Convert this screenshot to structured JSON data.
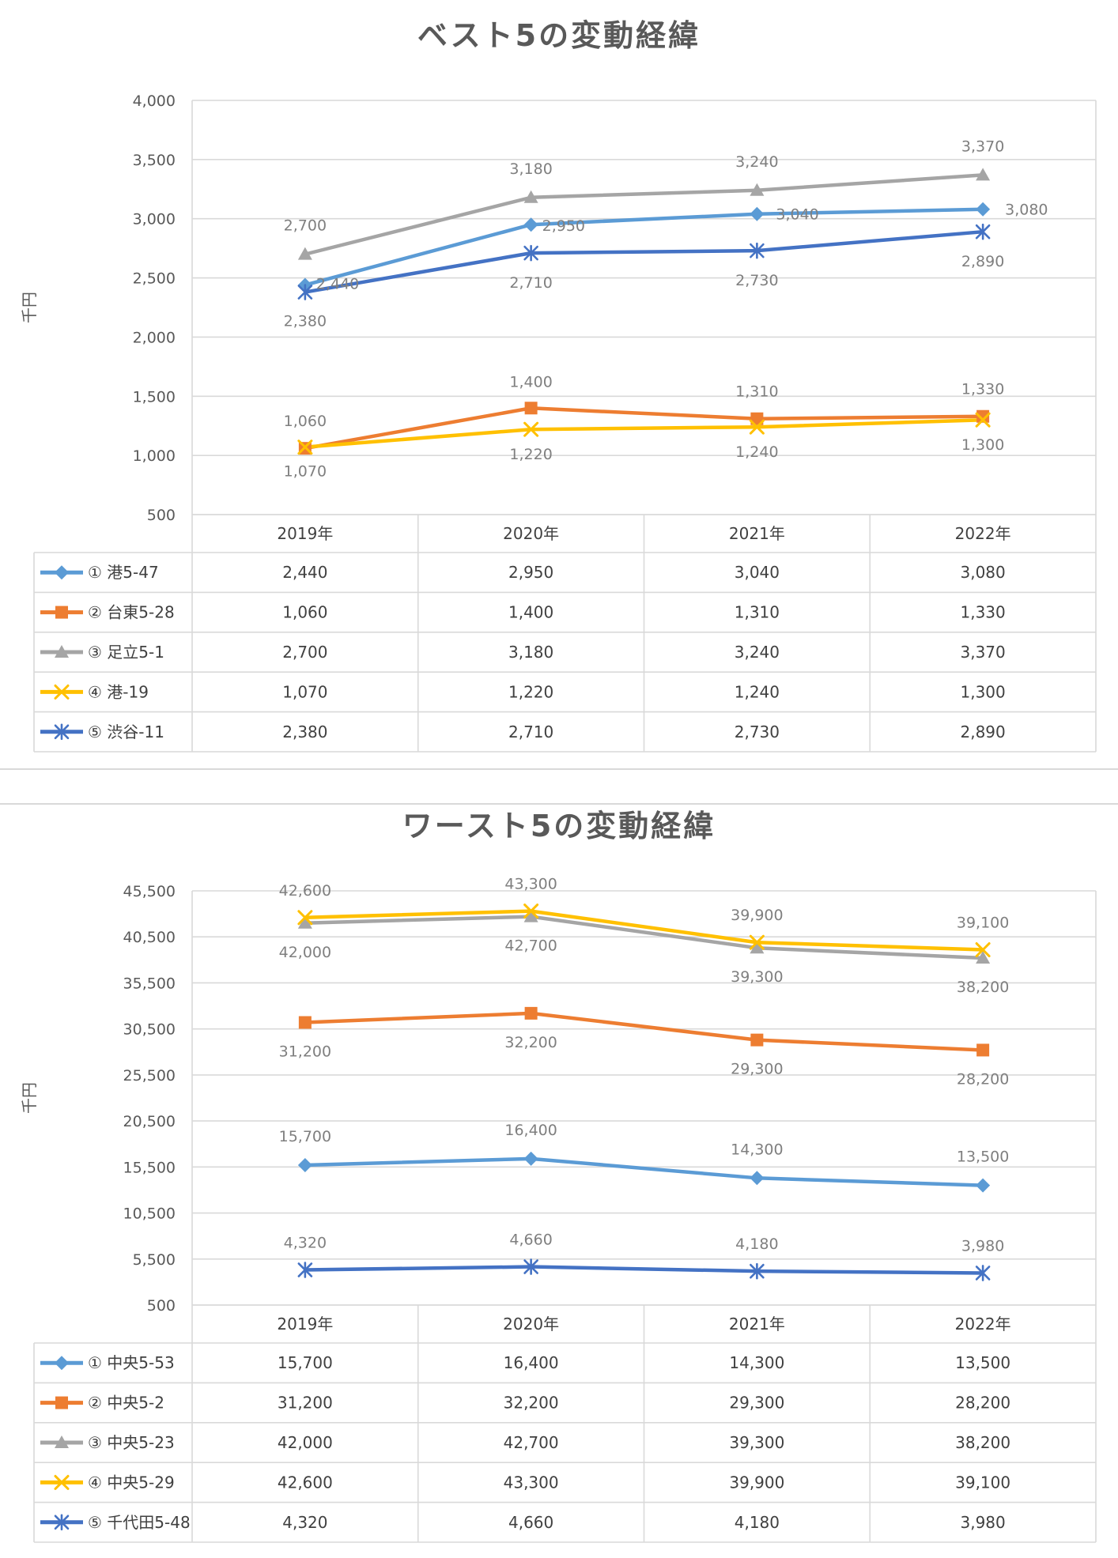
{
  "chart_data": [
    {
      "type": "line",
      "title": "ベスト5の変動経緯",
      "ylabel": "千円",
      "categories": [
        "2019年",
        "2020年",
        "2021年",
        "2022年"
      ],
      "ylim": [
        500,
        4000
      ],
      "yticks": [
        "4,000",
        "3,500",
        "3,000",
        "2,500",
        "2,000",
        "1,500",
        "1,000",
        "500"
      ],
      "ytick_values": [
        4000,
        3500,
        3000,
        2500,
        2000,
        1500,
        1000,
        500
      ],
      "grid": true,
      "legend": "data-table",
      "series": [
        {
          "name": "① 港5-47",
          "values": [
            2440,
            2950,
            3040,
            3080
          ],
          "labels": [
            "2,440",
            "2,950",
            "3,040",
            "3,080"
          ],
          "color": "#5B9BD5",
          "marker": "diamond"
        },
        {
          "name": "② 台東5-28",
          "values": [
            1060,
            1400,
            1310,
            1330
          ],
          "labels": [
            "1,060",
            "1,400",
            "1,310",
            "1,330"
          ],
          "color": "#ED7D31",
          "marker": "square"
        },
        {
          "name": "③ 足立5-1",
          "values": [
            2700,
            3180,
            3240,
            3370
          ],
          "labels": [
            "2,700",
            "3,180",
            "3,240",
            "3,370"
          ],
          "color": "#A5A5A5",
          "marker": "triangle"
        },
        {
          "name": "④ 港-19",
          "values": [
            1070,
            1220,
            1240,
            1300
          ],
          "labels": [
            "1,070",
            "1,220",
            "1,240",
            "1,300"
          ],
          "color": "#FFC000",
          "marker": "x"
        },
        {
          "name": "⑤ 渋谷-11",
          "values": [
            2380,
            2710,
            2730,
            2890
          ],
          "labels": [
            "2,380",
            "2,710",
            "2,730",
            "2,890"
          ],
          "color": "#4472C4",
          "marker": "star"
        }
      ]
    },
    {
      "type": "line",
      "title": "ワースト5の変動経緯",
      "ylabel": "千円",
      "categories": [
        "2019年",
        "2020年",
        "2021年",
        "2022年"
      ],
      "ylim": [
        500,
        45500
      ],
      "yticks": [
        "45,500",
        "40,500",
        "35,500",
        "30,500",
        "25,500",
        "20,500",
        "15,500",
        "10,500",
        "5,500",
        "500"
      ],
      "ytick_values": [
        45500,
        40500,
        35500,
        30500,
        25500,
        20500,
        15500,
        10500,
        5500,
        500
      ],
      "grid": true,
      "legend": "data-table",
      "series": [
        {
          "name": "① 中央5-53",
          "values": [
            15700,
            16400,
            14300,
            13500
          ],
          "labels": [
            "15,700",
            "16,400",
            "14,300",
            "13,500"
          ],
          "color": "#5B9BD5",
          "marker": "diamond"
        },
        {
          "name": "② 中央5-2",
          "values": [
            31200,
            32200,
            29300,
            28200
          ],
          "labels": [
            "31,200",
            "32,200",
            "29,300",
            "28,200"
          ],
          "color": "#ED7D31",
          "marker": "square"
        },
        {
          "name": "③ 中央5-23",
          "values": [
            42000,
            42700,
            39300,
            38200
          ],
          "labels": [
            "42,000",
            "42,700",
            "39,300",
            "38,200"
          ],
          "color": "#A5A5A5",
          "marker": "triangle"
        },
        {
          "name": "④ 中央5-29",
          "values": [
            42600,
            43300,
            39900,
            39100
          ],
          "labels": [
            "42,600",
            "43,300",
            "39,900",
            "39,100"
          ],
          "color": "#FFC000",
          "marker": "x"
        },
        {
          "name": "⑤ 千代田5-48",
          "values": [
            4320,
            4660,
            4180,
            3980
          ],
          "labels": [
            "4,320",
            "4,660",
            "4,180",
            "3,980"
          ],
          "color": "#4472C4",
          "marker": "star"
        }
      ]
    }
  ]
}
